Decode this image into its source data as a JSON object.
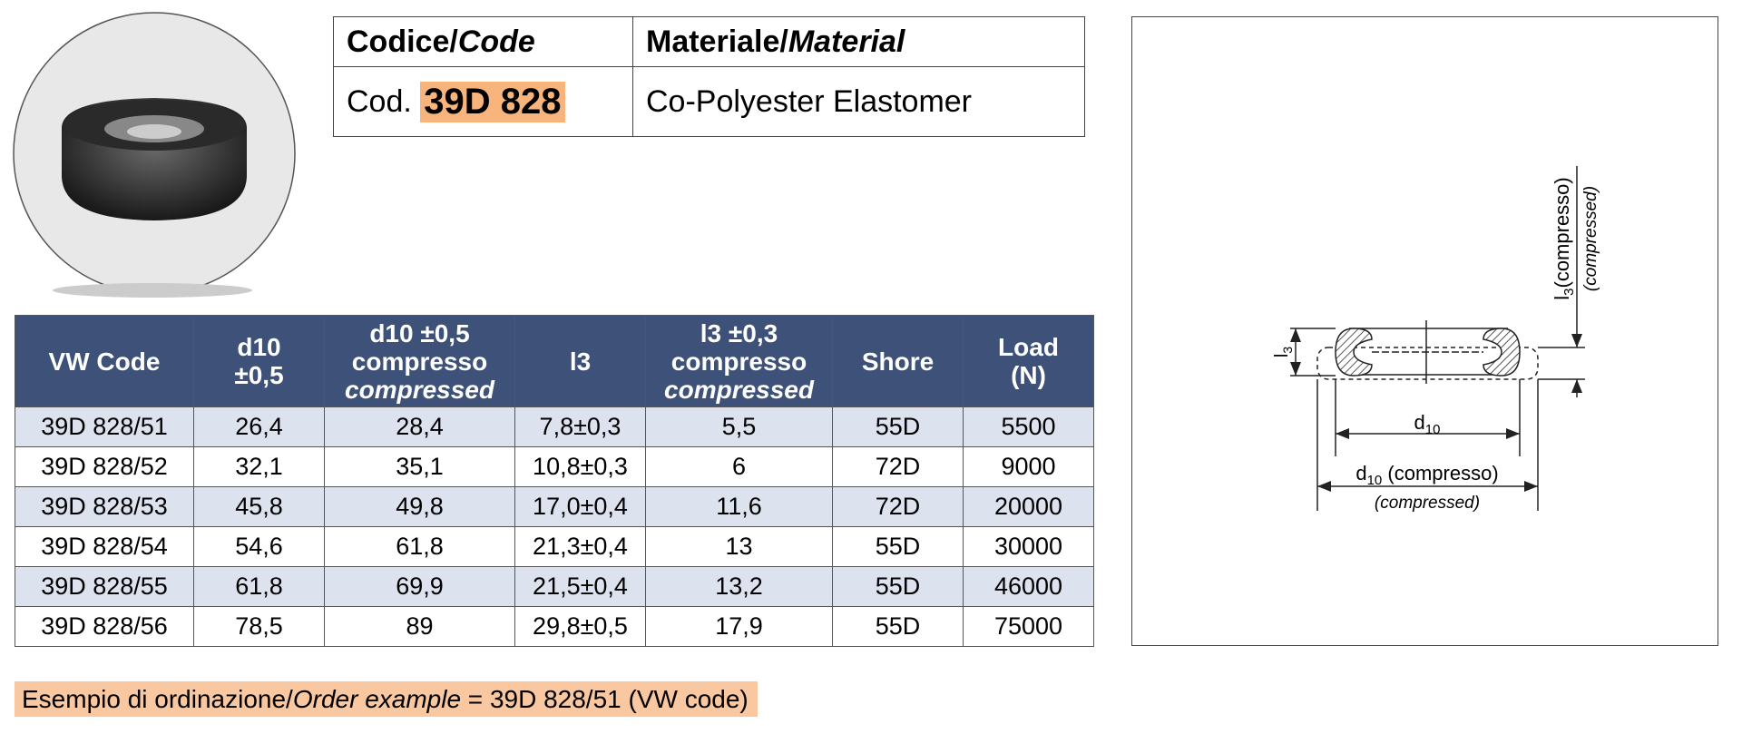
{
  "header": {
    "code_label": "Codice/",
    "code_label_en": "Code",
    "material_label": "Materiale/",
    "material_label_en": "Material",
    "code_prefix": "Cod.",
    "code": "39D 828",
    "material": "Co-Polyester Elastomer"
  },
  "table": {
    "columns": [
      {
        "lines": [
          "VW Code"
        ]
      },
      {
        "lines": [
          "d10",
          "±0,5"
        ]
      },
      {
        "lines": [
          "d10 ±0,5",
          "compresso"
        ],
        "italic": "compressed"
      },
      {
        "lines": [
          "l3"
        ]
      },
      {
        "lines": [
          "l3 ±0,3",
          "compresso"
        ],
        "italic": "compressed"
      },
      {
        "lines": [
          "Shore"
        ]
      },
      {
        "lines": [
          "Load",
          "(N)"
        ]
      }
    ],
    "rows": [
      [
        "39D 828/51",
        "26,4",
        "28,4",
        "7,8±0,3",
        "5,5",
        "55D",
        "5500"
      ],
      [
        "39D 828/52",
        "32,1",
        "35,1",
        "10,8±0,3",
        "6",
        "72D",
        "9000"
      ],
      [
        "39D 828/53",
        "45,8",
        "49,8",
        "17,0±0,4",
        "11,6",
        "72D",
        "20000"
      ],
      [
        "39D 828/54",
        "54,6",
        "61,8",
        "21,3±0,4",
        "13",
        "55D",
        "30000"
      ],
      [
        "39D 828/55",
        "61,8",
        "69,9",
        "21,5±0,4",
        "13,2",
        "55D",
        "46000"
      ],
      [
        "39D 828/56",
        "78,5",
        "89",
        "29,8±0,5",
        "17,9",
        "55D",
        "75000"
      ]
    ]
  },
  "order": {
    "prefix": "Esempio di ordinazione/",
    "italic": "Order example",
    "suffix": " = 39D 828/51 (VW code)"
  },
  "diagram": {
    "l3_compresso": {
      "base": "l",
      "sub": "3",
      "rest": "(compresso)"
    },
    "l3_compressed": "(compressed)",
    "l3": {
      "base": "l",
      "sub": "3"
    },
    "d10": {
      "base": "d",
      "sub": "10"
    },
    "d10_compresso": {
      "base": "d",
      "sub": "10",
      "rest": " (compresso)"
    },
    "d10_compressed": "(compressed)"
  }
}
